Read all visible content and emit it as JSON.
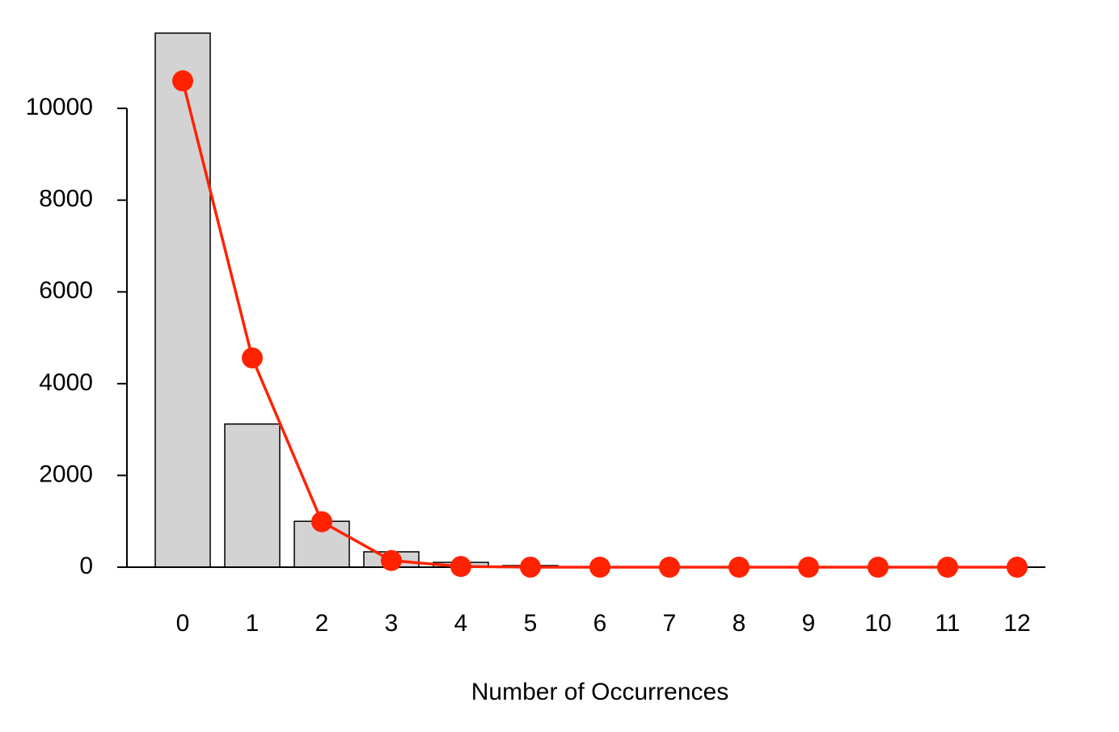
{
  "chart_data": {
    "type": "bar",
    "xlabel": "Number of Occurrences",
    "categories": [
      "0",
      "1",
      "2",
      "3",
      "4",
      "5",
      "6",
      "7",
      "8",
      "9",
      "10",
      "11",
      "12"
    ],
    "series": [
      {
        "type": "bar",
        "color": "#d3d3d3",
        "values": [
          11640,
          3120,
          1000,
          335,
          105,
          35,
          0,
          0,
          0,
          0,
          0,
          0,
          0
        ]
      },
      {
        "type": "line",
        "color": "#ff2200",
        "values": [
          10600,
          4560,
          990,
          145,
          15,
          1,
          0,
          0,
          0,
          0,
          0,
          0,
          0
        ]
      }
    ],
    "ylim": [
      0,
      11640
    ],
    "yticks": [
      0,
      2000,
      4000,
      6000,
      8000,
      10000
    ]
  }
}
